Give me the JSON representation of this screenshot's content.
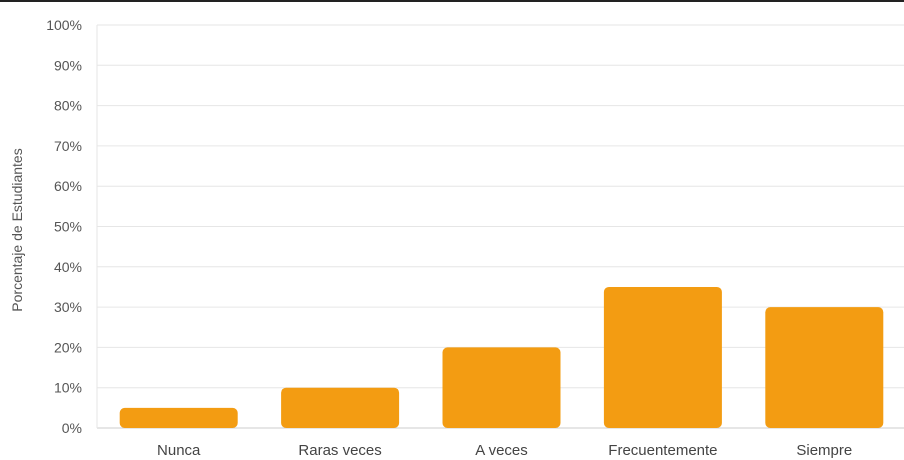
{
  "chart_data": {
    "type": "bar",
    "categories": [
      "Nunca",
      "Raras veces",
      "A veces",
      "Frecuentemente",
      "Siempre"
    ],
    "values": [
      5,
      10,
      20,
      35,
      30
    ],
    "ylabel": "Porcentaje de Estudiantes",
    "xlabel": "",
    "ylim": [
      0,
      100
    ],
    "yticks": [
      "0%",
      "10%",
      "20%",
      "30%",
      "40%",
      "50%",
      "60%",
      "70%",
      "80%",
      "90%",
      "100%"
    ],
    "grid": true,
    "legend": "none",
    "bar_color": "#f39c12",
    "grid_color": "#e6e6e6"
  }
}
